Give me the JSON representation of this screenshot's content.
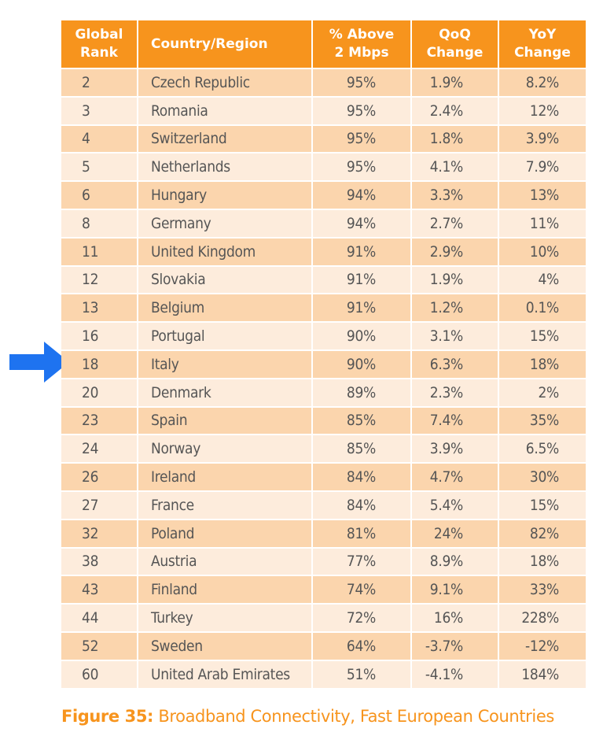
{
  "table": {
    "header": [
      [
        "Global",
        "Rank"
      ],
      [
        "Country/Region"
      ],
      [
        "% Above",
        "2 Mbps"
      ],
      [
        "QoQ",
        "Change"
      ],
      [
        "YoY",
        "Change"
      ]
    ],
    "rows": [
      [
        "2",
        "Czech Republic",
        "95%",
        "1.9%",
        "8.2%"
      ],
      [
        "3",
        "Romania",
        "95%",
        "2.4%",
        "12%"
      ],
      [
        "4",
        "Switzerland",
        "95%",
        "1.8%",
        "3.9%"
      ],
      [
        "5",
        "Netherlands",
        "95%",
        "4.1%",
        "7.9%"
      ],
      [
        "6",
        "Hungary",
        "94%",
        "3.3%",
        "13%"
      ],
      [
        "8",
        "Germany",
        "94%",
        "2.7%",
        "11%"
      ],
      [
        "11",
        "United Kingdom",
        "91%",
        "2.9%",
        "10%"
      ],
      [
        "12",
        "Slovakia",
        "91%",
        "1.9%",
        "4%"
      ],
      [
        "13",
        "Belgium",
        "91%",
        "1.2%",
        "0.1%"
      ],
      [
        "16",
        "Portugal",
        "90%",
        "3.1%",
        "15%"
      ],
      [
        "18",
        "Italy",
        "90%",
        "6.3%",
        "18%"
      ],
      [
        "20",
        "Denmark",
        "89%",
        "2.3%",
        "2%"
      ],
      [
        "23",
        "Spain",
        "85%",
        "7.4%",
        "35%"
      ],
      [
        "24",
        "Norway",
        "85%",
        "3.9%",
        "6.5%"
      ],
      [
        "26",
        "Ireland",
        "84%",
        "4.7%",
        "30%"
      ],
      [
        "27",
        "France",
        "84%",
        "5.4%",
        "15%"
      ],
      [
        "32",
        "Poland",
        "81%",
        "24%",
        "82%"
      ],
      [
        "38",
        "Austria",
        "77%",
        "8.9%",
        "18%"
      ],
      [
        "43",
        "Finland",
        "74%",
        "9.1%",
        "33%"
      ],
      [
        "44",
        "Turkey",
        "72%",
        "16%",
        "228%"
      ],
      [
        "52",
        "Sweden",
        "64%",
        "-3.7%",
        "-12%"
      ],
      [
        "60",
        "United Arab Emirates",
        "51%",
        "-4.1%",
        "184%"
      ]
    ]
  },
  "caption": {
    "label": "Figure 35:",
    "text": "Broadband Connectivity, Fast European Countries"
  }
}
